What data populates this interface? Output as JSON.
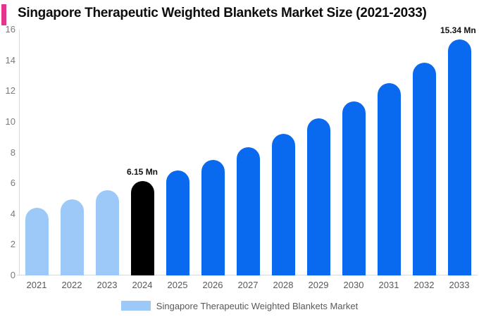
{
  "title": "Singapore Therapeutic Weighted Blankets Market Size (2021-2033)",
  "accent_color": "#E4358C",
  "chart_data": {
    "type": "bar",
    "title": "Singapore Therapeutic Weighted Blankets Market Size (2021-2033)",
    "categories": [
      "2021",
      "2022",
      "2023",
      "2024",
      "2025",
      "2026",
      "2027",
      "2028",
      "2029",
      "2030",
      "2031",
      "2032",
      "2033"
    ],
    "values": [
      4.42,
      4.93,
      5.55,
      6.15,
      6.81,
      7.54,
      8.34,
      9.23,
      10.22,
      11.31,
      12.52,
      13.86,
      15.34
    ],
    "unit": "Mn",
    "bar_colors": [
      "#9DC9F8",
      "#9DC9F8",
      "#9DC9F8",
      "#000000",
      "#0A6AEF",
      "#0A6AEF",
      "#0A6AEF",
      "#0A6AEF",
      "#0A6AEF",
      "#0A6AEF",
      "#0A6AEF",
      "#0A6AEF",
      "#0A6AEF"
    ],
    "ylim": [
      0,
      16
    ],
    "yticks": [
      0,
      2,
      4,
      6,
      8,
      10,
      12,
      14,
      16
    ],
    "grid": "off",
    "value_labels": [
      {
        "category": "2024",
        "text": "6.15 Mn"
      },
      {
        "category": "2033",
        "text": "15.34 Mn"
      }
    ],
    "legend": {
      "position": "bottom-center",
      "swatch_color": "#9DC9F8",
      "label": "Singapore Therapeutic Weighted Blankets Market"
    },
    "axis_color": "#DADADA",
    "ytick_color": "#7A7A7A",
    "xtick_color": "#595959"
  }
}
